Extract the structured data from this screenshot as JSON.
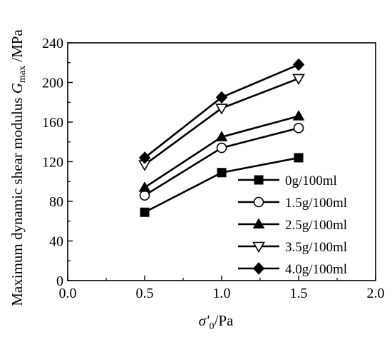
{
  "chart_data": {
    "type": "line",
    "x": [
      0.5,
      1.0,
      1.5
    ],
    "xlim": [
      0.0,
      2.0
    ],
    "ylim": [
      0,
      240
    ],
    "xticks": [
      "0.0",
      "0.5",
      "1.0",
      "1.5",
      "2.0"
    ],
    "yticks": [
      "0",
      "40",
      "80",
      "120",
      "160",
      "200",
      "240"
    ],
    "xlabel": {
      "symbol": "σ'",
      "subscript": "0",
      "suffix": "/Pa"
    },
    "ylabel": {
      "prefix": "Maximum dynamic shear modulus ",
      "symbol": "G",
      "subscript": "max",
      "suffix": " /MPa"
    },
    "grid": false,
    "legend_position": "bottom-right",
    "series": [
      {
        "name": "0g/100ml",
        "marker": "square-filled",
        "values": [
          69,
          109,
          124
        ]
      },
      {
        "name": "1.5g/100ml",
        "marker": "circle-open",
        "values": [
          86,
          134,
          154
        ]
      },
      {
        "name": "2.5g/100ml",
        "marker": "triangle-up-filled",
        "values": [
          94,
          145,
          166
        ]
      },
      {
        "name": "3.5g/100ml",
        "marker": "triangle-down-open",
        "values": [
          117,
          174,
          204
        ]
      },
      {
        "name": "4.0g/100ml",
        "marker": "diamond-filled",
        "values": [
          124,
          185,
          218
        ]
      }
    ],
    "colors": {
      "line": "#000000",
      "background": "#ffffff"
    }
  }
}
